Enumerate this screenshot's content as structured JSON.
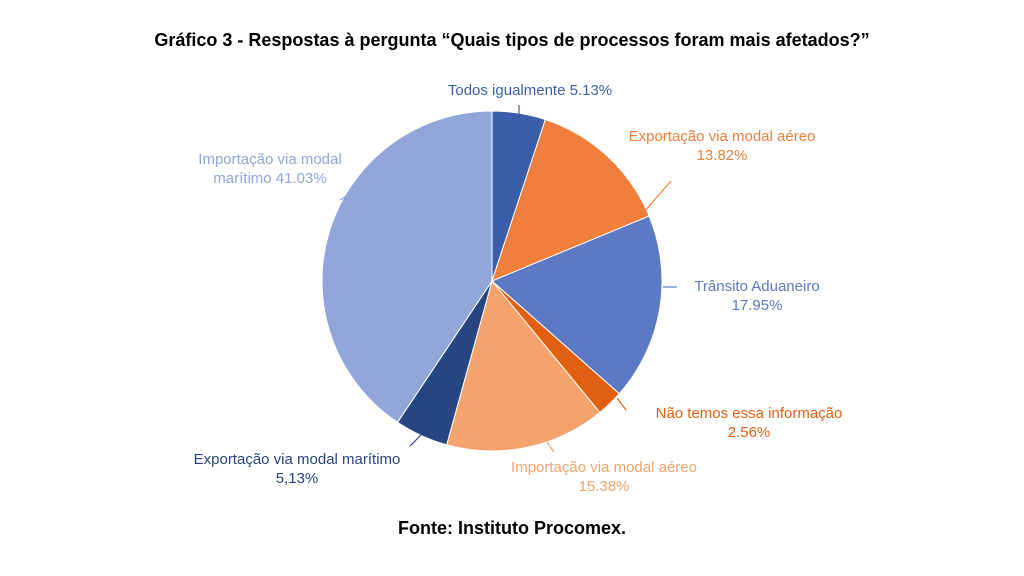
{
  "chart_data": {
    "type": "pie",
    "title": "Gráfico 3 - Respostas à pergunta “Quais tipos de processos foram mais afetados?”",
    "source": "Fonte: Instituto Procomex.",
    "slices": [
      {
        "label_line1": "Todos igualmente 5.13%",
        "label_line2": "",
        "value": 5.13,
        "color": "#3a5ea8"
      },
      {
        "label_line1": "Exportação via modal aéreo",
        "label_line2": "13.82%",
        "value": 13.82,
        "color": "#ef7f3a"
      },
      {
        "label_line1": "Trânsito Aduaneiro",
        "label_line2": "17.95%",
        "value": 17.95,
        "color": "#5b79c5"
      },
      {
        "label_line1": "Não temos essa informação",
        "label_line2": "2.56%",
        "value": 2.56,
        "color": "#e05f10"
      },
      {
        "label_line1": "Importação via modal aéreo",
        "label_line2": "15.38%",
        "value": 15.38,
        "color": "#f4a36c"
      },
      {
        "label_line1": "Exportação via modal marítimo",
        "label_line2": "5,13%",
        "value": 5.13,
        "color": "#27457f"
      },
      {
        "label_line1": "Importação via modal",
        "label_line2": "marítimo 41.03%",
        "value": 41.03,
        "color": "#91a7d9"
      }
    ],
    "label_colors": [
      "#3a5ea8",
      "#ef7f3a",
      "#5b79c5",
      "#e05f10",
      "#f4a36c",
      "#27457f",
      "#91a7d9"
    ]
  }
}
